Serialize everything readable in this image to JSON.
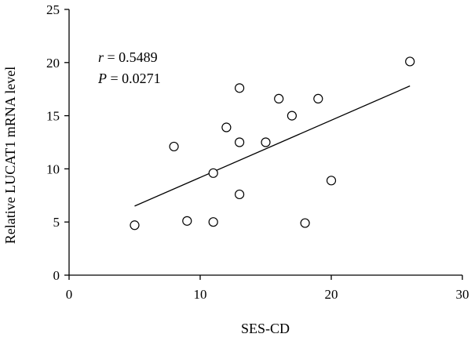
{
  "chart_data": {
    "type": "scatter",
    "xlabel": "SES-CD",
    "ylabel": "Relative LUCAT1 mRNA level",
    "xlim": [
      0,
      30
    ],
    "ylim": [
      0,
      25
    ],
    "x_ticks": [
      0,
      10,
      20,
      30
    ],
    "y_ticks": [
      0,
      5,
      10,
      15,
      20,
      25
    ],
    "grid": false,
    "annotations": {
      "r_symbol": "r",
      "r_value": " = 0.5489",
      "p_symbol": "P",
      "p_value": " = 0.0271"
    },
    "points": [
      {
        "x": 5,
        "y": 4.7
      },
      {
        "x": 8,
        "y": 12.1
      },
      {
        "x": 9,
        "y": 5.1
      },
      {
        "x": 11,
        "y": 5.0
      },
      {
        "x": 11,
        "y": 9.6
      },
      {
        "x": 12,
        "y": 13.9
      },
      {
        "x": 13,
        "y": 17.6
      },
      {
        "x": 13,
        "y": 12.5
      },
      {
        "x": 13,
        "y": 7.6
      },
      {
        "x": 15,
        "y": 12.5
      },
      {
        "x": 16,
        "y": 16.6
      },
      {
        "x": 17,
        "y": 15.0
      },
      {
        "x": 18,
        "y": 4.9
      },
      {
        "x": 19,
        "y": 16.6
      },
      {
        "x": 20,
        "y": 8.9
      },
      {
        "x": 26,
        "y": 20.1
      }
    ],
    "trendline": {
      "x": [
        5,
        26
      ],
      "y": [
        6.5,
        17.8
      ]
    }
  }
}
